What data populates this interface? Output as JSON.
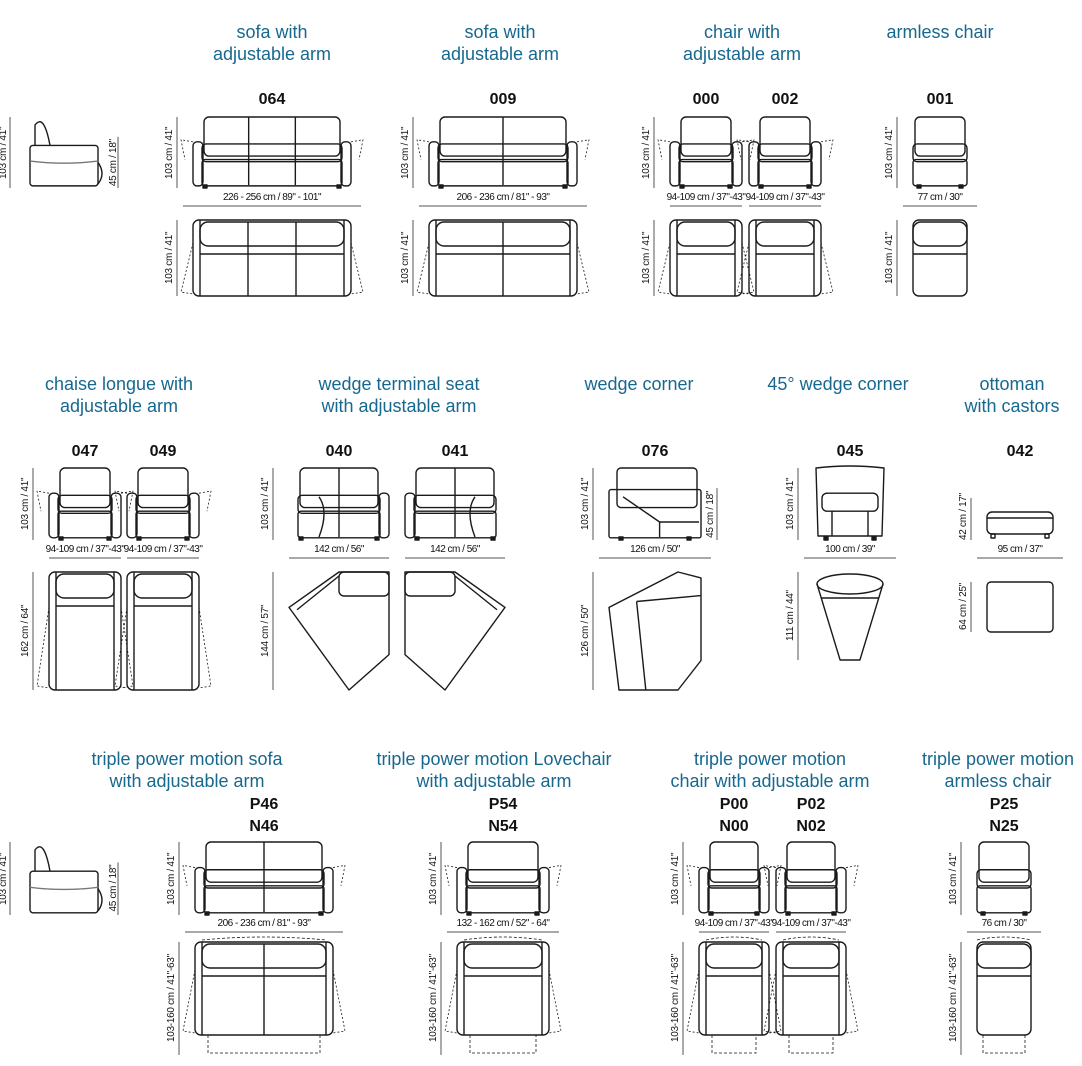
{
  "title_color": "#17688f",
  "side_views": [
    {
      "height": "103 cm / 41\"",
      "seat_height": "45 cm / 18\""
    },
    {
      "height": "103 cm / 41\"",
      "seat_height": "45 cm / 18\""
    }
  ],
  "groups": [
    {
      "title": [
        "sofa with",
        "adjustable arm"
      ],
      "models": [
        {
          "codes": [
            "064"
          ],
          "height": "103 cm / 41\"",
          "width": "226 - 256 cm / 89\" - 101\"",
          "depth": "103 cm / 41\""
        }
      ]
    },
    {
      "title": [
        "sofa with",
        "adjustable arm"
      ],
      "models": [
        {
          "codes": [
            "009"
          ],
          "height": "103 cm / 41\"",
          "width": "206 - 236 cm / 81\" - 93\"",
          "depth": "103 cm / 41\""
        }
      ]
    },
    {
      "title": [
        "chair with",
        "adjustable arm"
      ],
      "models": [
        {
          "codes": [
            "000"
          ],
          "height": "103 cm / 41\"",
          "width": "94-109 cm / 37\"-43\"",
          "depth": "103 cm / 41\""
        },
        {
          "codes": [
            "002"
          ],
          "width": "94-109 cm / 37\"-43\""
        }
      ]
    },
    {
      "title": [
        "armless chair"
      ],
      "models": [
        {
          "codes": [
            "001"
          ],
          "height": "103 cm / 41\"",
          "width": "77 cm / 30\"",
          "depth": "103 cm / 41\""
        }
      ]
    },
    {
      "title": [
        "chaise longue with",
        "adjustable arm"
      ],
      "models": [
        {
          "codes": [
            "047"
          ],
          "height": "103 cm / 41\"",
          "width": "94-109 cm / 37\"-43\"",
          "depth": "162 cm / 64\""
        },
        {
          "codes": [
            "049"
          ],
          "width": "94-109 cm / 37\"-43\""
        }
      ]
    },
    {
      "title": [
        "wedge terminal seat",
        "with adjustable arm"
      ],
      "models": [
        {
          "codes": [
            "040"
          ],
          "height": "103 cm / 41\"",
          "width": "142 cm / 56\"",
          "depth": "144 cm / 57\""
        },
        {
          "codes": [
            "041"
          ],
          "width": "142 cm / 56\""
        }
      ]
    },
    {
      "title": [
        "wedge corner"
      ],
      "models": [
        {
          "codes": [
            "076"
          ],
          "height": "103 cm / 41\"",
          "seat_height": "45 cm / 18\"",
          "width": "126 cm / 50\"",
          "depth": "126 cm / 50\""
        }
      ]
    },
    {
      "title": [
        "45° wedge corner"
      ],
      "models": [
        {
          "codes": [
            "045"
          ],
          "height": "103 cm / 41\"",
          "width": "100 cm / 39\"",
          "depth": "111 cm / 44\""
        }
      ]
    },
    {
      "title": [
        "ottoman",
        "with castors"
      ],
      "models": [
        {
          "codes": [
            "042"
          ],
          "height": "42 cm / 17\"",
          "width": "95 cm / 37\"",
          "depth": "64 cm / 25\""
        }
      ]
    },
    {
      "title": [
        "triple power motion sofa",
        "with adjustable arm"
      ],
      "models": [
        {
          "codes": [
            "P46",
            "N46"
          ],
          "height": "103 cm / 41\"",
          "width": "206 - 236 cm / 81\" - 93\"",
          "depth": "103-160 cm / 41\"-63\""
        }
      ]
    },
    {
      "title": [
        "triple power motion Lovechair",
        "with adjustable arm"
      ],
      "models": [
        {
          "codes": [
            "P54",
            "N54"
          ],
          "height": "103 cm / 41\"",
          "width": "132 - 162 cm / 52\" - 64\"",
          "depth": "103-160 cm / 41\"-63\""
        }
      ]
    },
    {
      "title": [
        "triple power motion",
        "chair with adjustable arm"
      ],
      "models": [
        {
          "codes": [
            "P00",
            "N00"
          ],
          "height": "103 cm / 41\"",
          "width": "94-109 cm / 37\"-43\"",
          "depth": "103-160 cm / 41\"-63\""
        },
        {
          "codes": [
            "P02",
            "N02"
          ],
          "width": "94-109 cm / 37\"-43\""
        }
      ]
    },
    {
      "title": [
        "triple power motion",
        "armless chair"
      ],
      "models": [
        {
          "codes": [
            "P25",
            "N25"
          ],
          "height": "103 cm / 41\"",
          "width": "76 cm / 30\"",
          "depth": "103-160 cm / 41\"-63\""
        }
      ]
    }
  ]
}
